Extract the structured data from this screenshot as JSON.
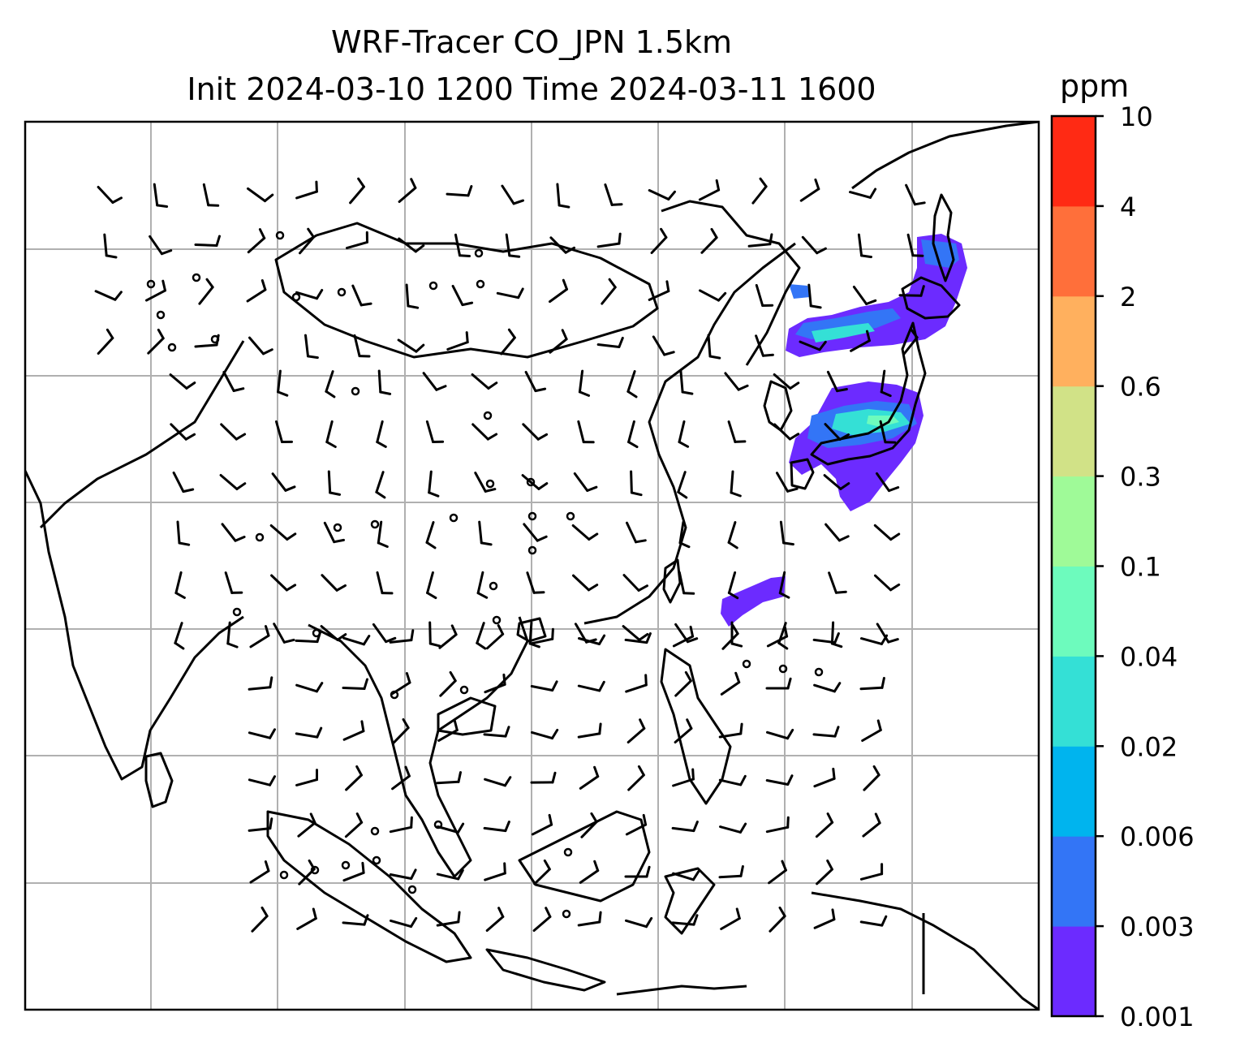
{
  "title": {
    "line1": "WRF-Tracer CO_JPN 1.5km",
    "line2": "Init 2024-03-10 1200 Time 2024-03-11 1600"
  },
  "colorbar": {
    "unit": "ppm",
    "levels": [
      "0.001",
      "0.003",
      "0.006",
      "0.02",
      "0.04",
      "0.1",
      "0.3",
      "0.6",
      "2",
      "4",
      "10"
    ],
    "colors": [
      "#6c2bff",
      "#3375f6",
      "#00b4ee",
      "#34e0d6",
      "#6dfbbd",
      "#9ffa98",
      "#d1e287",
      "#ffb05e",
      "#ff6f3a",
      "#ff2a14"
    ]
  },
  "map": {
    "gridlines": true,
    "grid_color": "#b0b0b0",
    "plume_colors": {
      "outer": "#6c2bff",
      "mid": "#3375f6",
      "inner": "#34e0d6",
      "core": "#6dfbbd"
    }
  }
}
